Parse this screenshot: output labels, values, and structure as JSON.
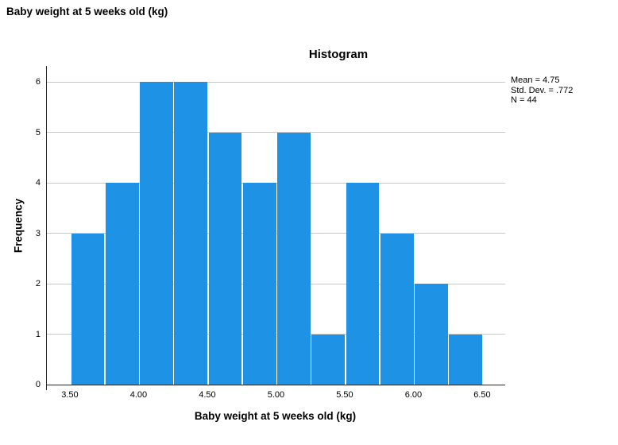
{
  "output_title": "Baby weight at 5 weeks old (kg)",
  "chart_data": {
    "type": "bar",
    "subtype": "histogram",
    "title": "Histogram",
    "xlabel": "Baby weight at 5 weeks old (kg)",
    "ylabel": "Frequency",
    "bin_edges": [
      3.5,
      3.75,
      4.0,
      4.25,
      4.5,
      4.75,
      5.0,
      5.25,
      5.5,
      5.75,
      6.0,
      6.25,
      6.5
    ],
    "values": [
      3,
      4,
      6,
      6,
      5,
      4,
      5,
      1,
      4,
      3,
      2,
      1
    ],
    "n_total": 44,
    "xlim": [
      3.327,
      6.662
    ],
    "ylim": [
      0,
      6.315
    ],
    "yticks": [
      {
        "value": 0,
        "label": "0"
      },
      {
        "value": 1,
        "label": "1"
      },
      {
        "value": 2,
        "label": "2"
      },
      {
        "value": 3,
        "label": "3"
      },
      {
        "value": 4,
        "label": "4"
      },
      {
        "value": 5,
        "label": "5"
      },
      {
        "value": 6,
        "label": "6"
      }
    ],
    "xticks": [
      {
        "value": 3.5,
        "label": "3.50"
      },
      {
        "value": 4.0,
        "label": "4.00"
      },
      {
        "value": 4.5,
        "label": "4.50"
      },
      {
        "value": 5.0,
        "label": "5.00"
      },
      {
        "value": 5.5,
        "label": "5.50"
      },
      {
        "value": 6.0,
        "label": "6.00"
      },
      {
        "value": 6.5,
        "label": "6.50"
      }
    ],
    "grid": "horizontal",
    "legend_position": "none",
    "annotations": [
      "Mean = 4.75",
      "Std. Dev. = .772",
      "N = 44"
    ],
    "colors": {
      "bar": "#1E92E5",
      "grid": "#C9C9C9",
      "axis": "#262626",
      "text": "#000000",
      "background": "#FFFFFF"
    }
  }
}
